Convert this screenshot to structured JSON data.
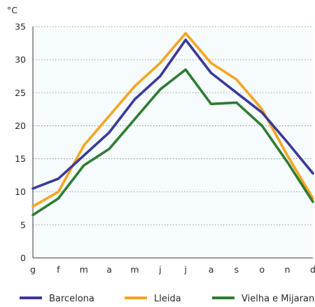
{
  "chart_data": {
    "type": "line",
    "unit_label": "°C",
    "categories": [
      "g",
      "f",
      "m",
      "a",
      "m",
      "j",
      "j",
      "a",
      "s",
      "o",
      "n",
      "d"
    ],
    "ylim": [
      0,
      35
    ],
    "yticks": [
      0,
      5,
      10,
      15,
      20,
      25,
      30,
      35
    ],
    "grid": "horizontal dotted",
    "legend_position": "bottom",
    "series": [
      {
        "name": "Barcelona",
        "color": "#3a3a98",
        "values": [
          10.5,
          12,
          15.5,
          19,
          24,
          27.5,
          33,
          28,
          25,
          22,
          17.5,
          12.8
        ]
      },
      {
        "name": "Lleida",
        "color": "#f5a623",
        "values": [
          7.8,
          10,
          17,
          21.5,
          26,
          29.5,
          34,
          29.5,
          27,
          22.5,
          15.5,
          9
        ]
      },
      {
        "name": "Vielha e Mijaran",
        "color": "#2e7d32",
        "values": [
          6.5,
          9,
          14,
          16.5,
          21,
          25.5,
          28.5,
          23.3,
          23.5,
          20,
          14.5,
          8.5
        ]
      }
    ]
  }
}
